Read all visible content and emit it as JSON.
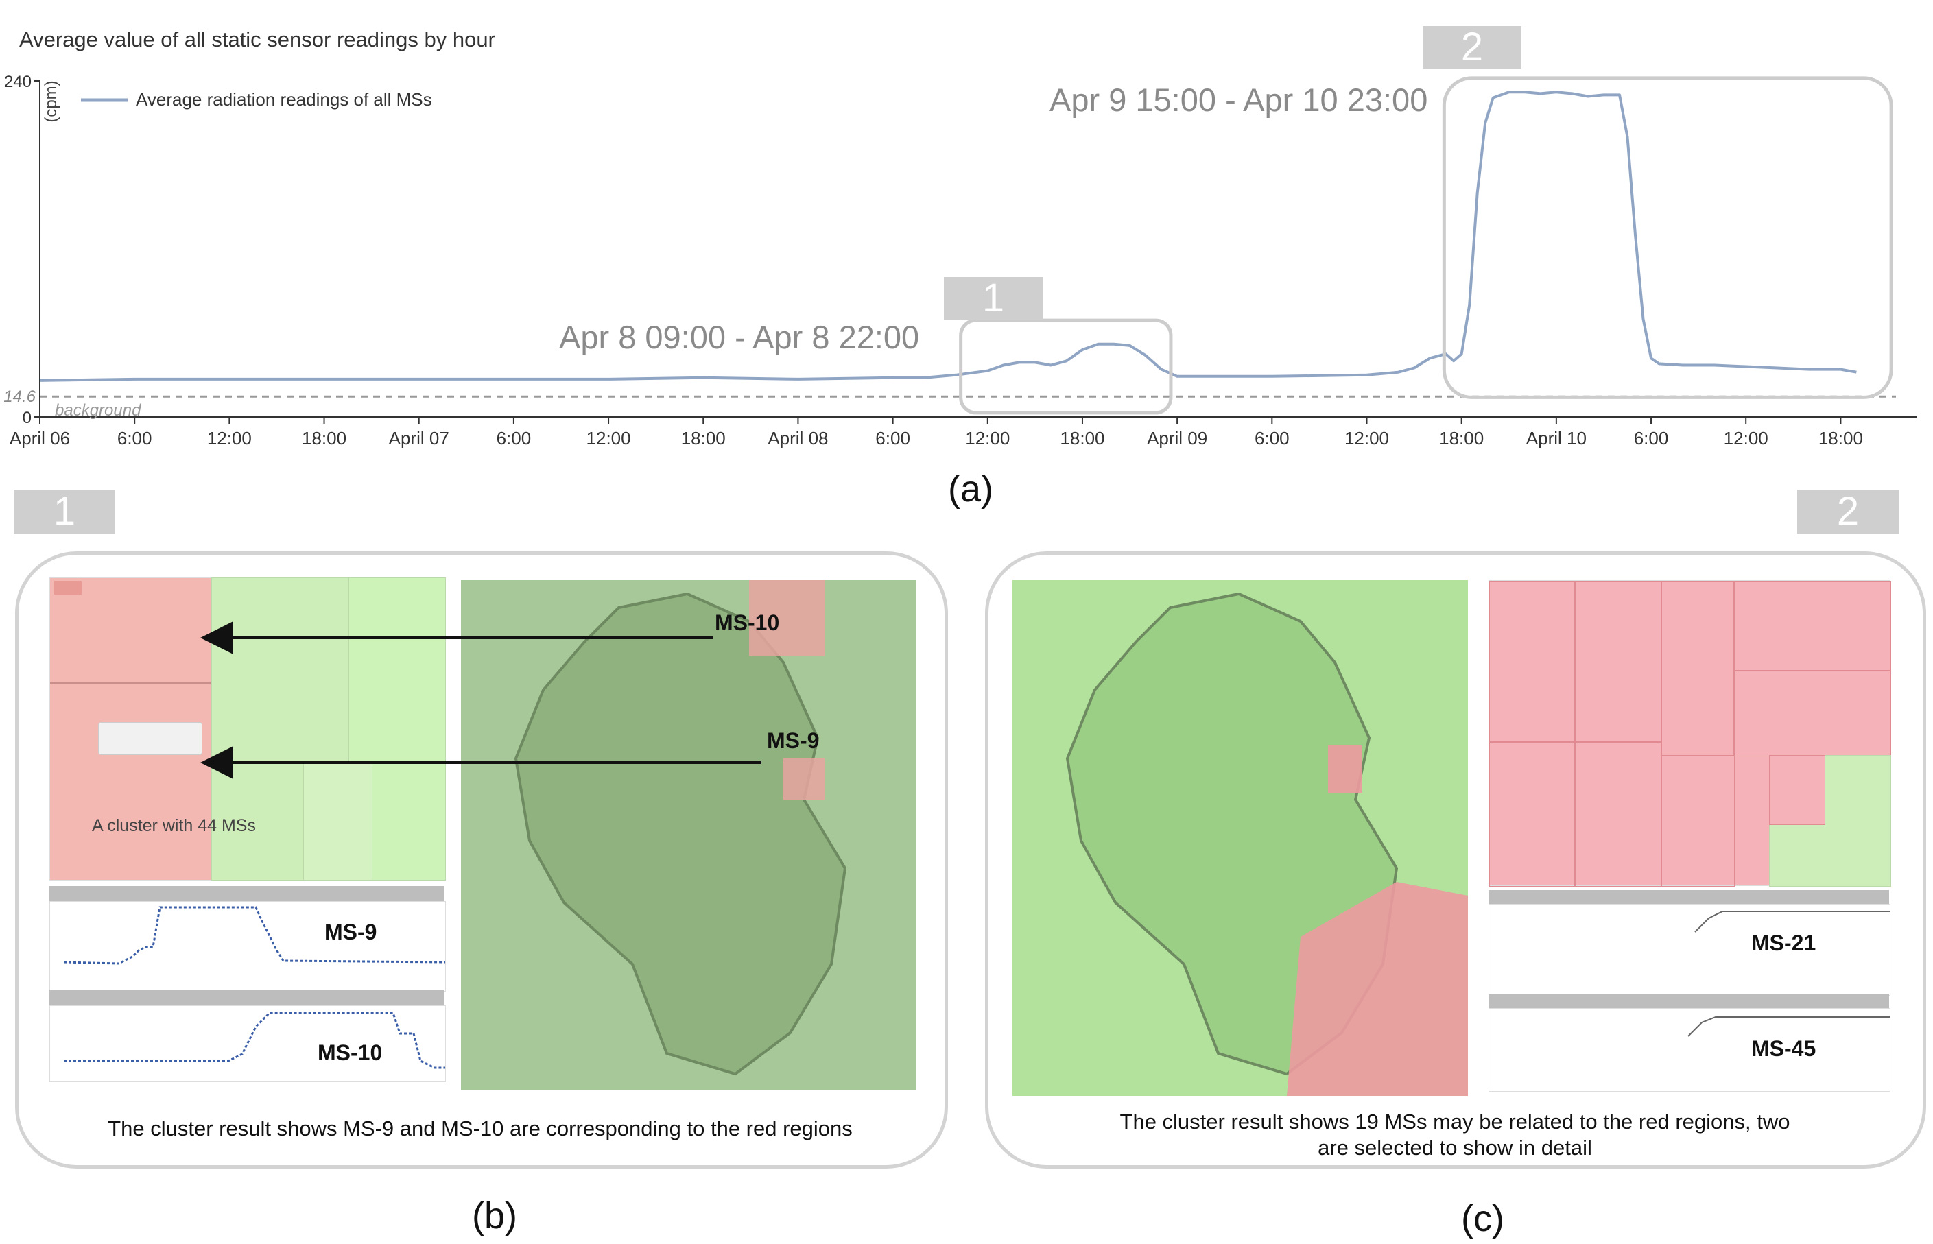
{
  "chart_data": {
    "type": "line",
    "title": "Average value of all static sensor readings by hour",
    "ylabel": "(cpm)",
    "ylim": [
      0,
      240
    ],
    "ytick_labels": [
      "240",
      "0"
    ],
    "background_value": 14.6,
    "background_tick_label": "14.6",
    "background_label": "background",
    "xlim_hours": [
      0,
      110
    ],
    "x_ticks": [
      {
        "h": 0,
        "label": "April 06"
      },
      {
        "h": 6,
        "label": "6:00"
      },
      {
        "h": 12,
        "label": "12:00"
      },
      {
        "h": 18,
        "label": "18:00"
      },
      {
        "h": 24,
        "label": "April 07"
      },
      {
        "h": 30,
        "label": "6:00"
      },
      {
        "h": 36,
        "label": "12:00"
      },
      {
        "h": 42,
        "label": "18:00"
      },
      {
        "h": 48,
        "label": "April 08"
      },
      {
        "h": 54,
        "label": "6:00"
      },
      {
        "h": 60,
        "label": "12:00"
      },
      {
        "h": 66,
        "label": "18:00"
      },
      {
        "h": 72,
        "label": "April 09"
      },
      {
        "h": 78,
        "label": "6:00"
      },
      {
        "h": 84,
        "label": "12:00"
      },
      {
        "h": 90,
        "label": "18:00"
      },
      {
        "h": 96,
        "label": "April 10"
      },
      {
        "h": 102,
        "label": "6:00"
      },
      {
        "h": 108,
        "label": "12:00"
      },
      {
        "h": 114,
        "label": "18:00"
      }
    ],
    "series": [
      {
        "name": "Average radiation readings of all MSs",
        "color": "#8fa5c3",
        "points": [
          [
            0,
            26
          ],
          [
            6,
            27
          ],
          [
            12,
            27
          ],
          [
            18,
            27
          ],
          [
            24,
            27
          ],
          [
            30,
            27
          ],
          [
            36,
            27
          ],
          [
            42,
            28
          ],
          [
            48,
            27
          ],
          [
            54,
            28
          ],
          [
            56,
            28
          ],
          [
            58,
            30
          ],
          [
            60,
            33
          ],
          [
            61,
            37
          ],
          [
            62,
            39
          ],
          [
            63,
            39
          ],
          [
            64,
            37
          ],
          [
            65,
            40
          ],
          [
            66,
            48
          ],
          [
            67,
            52
          ],
          [
            68,
            52
          ],
          [
            69,
            51
          ],
          [
            70,
            44
          ],
          [
            71,
            34
          ],
          [
            72,
            29
          ],
          [
            78,
            29
          ],
          [
            84,
            30
          ],
          [
            86,
            32
          ],
          [
            87,
            35
          ],
          [
            88,
            42
          ],
          [
            89,
            45
          ],
          [
            89.5,
            40
          ],
          [
            90,
            45
          ],
          [
            90.5,
            80
          ],
          [
            91,
            160
          ],
          [
            91.5,
            210
          ],
          [
            92,
            228
          ],
          [
            93,
            232
          ],
          [
            94,
            232
          ],
          [
            95,
            231
          ],
          [
            96,
            232
          ],
          [
            97,
            231
          ],
          [
            98,
            229
          ],
          [
            99,
            230
          ],
          [
            100,
            230
          ],
          [
            100.5,
            200
          ],
          [
            101,
            130
          ],
          [
            101.5,
            70
          ],
          [
            102,
            42
          ],
          [
            102.5,
            38
          ],
          [
            104,
            37
          ],
          [
            106,
            37
          ],
          [
            108,
            36
          ],
          [
            110,
            35
          ],
          [
            112,
            34
          ],
          [
            114,
            34
          ],
          [
            115,
            32
          ]
        ]
      }
    ]
  },
  "annotations": {
    "region1": {
      "tag": "1",
      "range": "Apr 8 09:00 - Apr 8 22:00"
    },
    "region2": {
      "tag": "2",
      "range": "Apr 9 15:00 - Apr 10 23:00"
    }
  },
  "fig_labels": {
    "a": "(a)",
    "b": "(b)",
    "c": "(c)"
  },
  "panel_b": {
    "tag": "1",
    "cluster_label": "A cluster with 44 MSs",
    "map_labels": [
      "MS-10",
      "MS-9"
    ],
    "chart_labels": [
      "MS-9",
      "MS-10"
    ],
    "caption": "The cluster result shows MS-9 and MS-10 are corresponding to the red regions"
  },
  "panel_c": {
    "tag": "2",
    "chart_labels": [
      "MS-21",
      "MS-45"
    ],
    "caption_line1": "The cluster result shows 19 MSs may be related to the red regions, two",
    "caption_line2": "are selected to show in detail"
  }
}
